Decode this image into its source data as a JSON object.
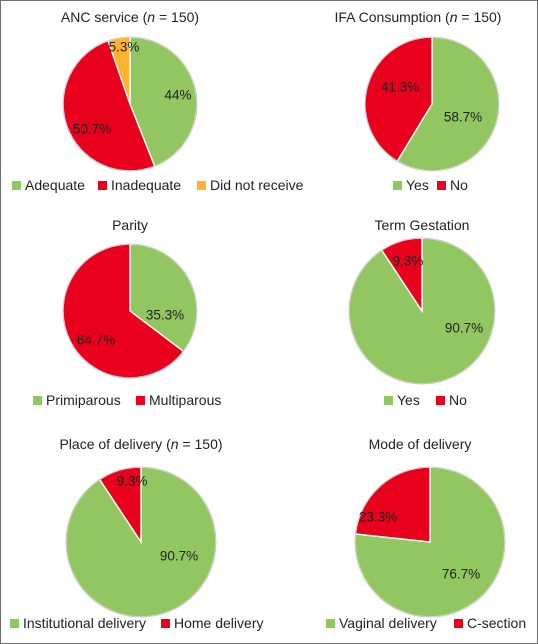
{
  "chart_data": [
    {
      "type": "pie",
      "title": {
        "main": "ANC service",
        "n_var": "n",
        "n_rest": " = 150"
      },
      "categories": [
        "Adequate",
        "Inadequate",
        "Did not receive"
      ],
      "values": [
        44,
        50.7,
        5.3
      ],
      "labels": [
        "44%",
        "50.7%",
        "5.3%"
      ],
      "colors": [
        "#92c660",
        "#e8001c",
        "#ffb22b"
      ],
      "legend": "bottom"
    },
    {
      "type": "pie",
      "title": {
        "main": "IFA Consumption",
        "n_var": "n",
        "n_rest": " = 150"
      },
      "categories": [
        "Yes",
        "No"
      ],
      "values": [
        58.7,
        41.3
      ],
      "labels": [
        "58.7%",
        "41.3%"
      ],
      "colors": [
        "#92c660",
        "#e8001c"
      ],
      "legend": "bottom"
    },
    {
      "type": "pie",
      "title": {
        "main": "Parity"
      },
      "categories": [
        "Primiparous",
        "Multiparous"
      ],
      "values": [
        35.3,
        64.7
      ],
      "labels": [
        "35.3%",
        "64.7%"
      ],
      "colors": [
        "#92c660",
        "#e8001c"
      ],
      "legend": "bottom"
    },
    {
      "type": "pie",
      "title": {
        "main": "Term Gestation"
      },
      "categories": [
        "Yes",
        "No"
      ],
      "values": [
        90.7,
        9.3
      ],
      "labels": [
        "90.7%",
        "9.3%"
      ],
      "colors": [
        "#92c660",
        "#e8001c"
      ],
      "legend": "bottom"
    },
    {
      "type": "pie",
      "title": {
        "main": "Place of delivery",
        "n_var": "n",
        "n_rest": " = 150"
      },
      "categories": [
        "Institutional delivery",
        "Home delivery"
      ],
      "values": [
        90.7,
        9.3
      ],
      "labels": [
        "90.7%",
        "9.3%"
      ],
      "colors": [
        "#92c660",
        "#e8001c"
      ],
      "legend": "bottom"
    },
    {
      "type": "pie",
      "title": {
        "main": "Mode of delivery"
      },
      "categories": [
        "Vaginal delivery",
        "C-section"
      ],
      "values": [
        76.7,
        23.3
      ],
      "labels": [
        "76.7%",
        "23.3%"
      ],
      "colors": [
        "#92c660",
        "#e8001c"
      ],
      "legend": "bottom"
    }
  ]
}
